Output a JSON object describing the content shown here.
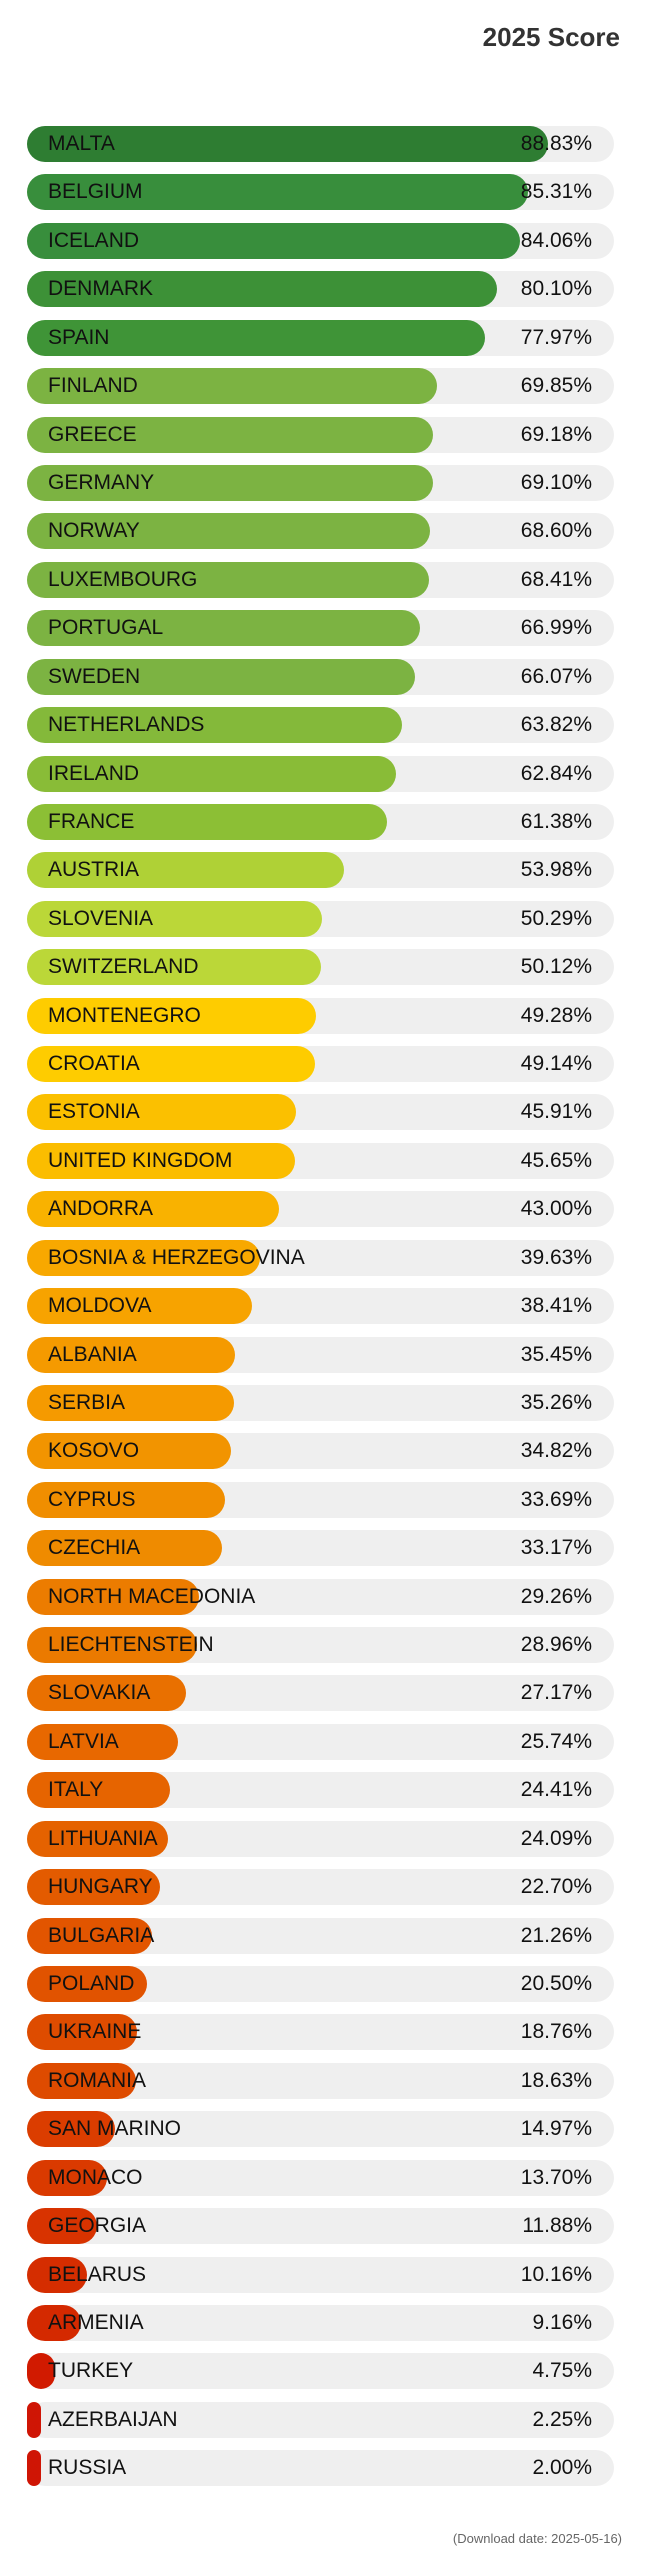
{
  "chart_data": {
    "type": "bar",
    "orientation": "horizontal",
    "title": "2025 Score",
    "xlim": [
      0,
      100
    ],
    "unit": "%",
    "categories": [
      "MALTA",
      "BELGIUM",
      "ICELAND",
      "DENMARK",
      "SPAIN",
      "FINLAND",
      "GREECE",
      "GERMANY",
      "NORWAY",
      "LUXEMBOURG",
      "PORTUGAL",
      "SWEDEN",
      "NETHERLANDS",
      "IRELAND",
      "FRANCE",
      "AUSTRIA",
      "SLOVENIA",
      "SWITZERLAND",
      "MONTENEGRO",
      "CROATIA",
      "ESTONIA",
      "UNITED KINGDOM",
      "ANDORRA",
      "BOSNIA & HERZEGOVINA",
      "MOLDOVA",
      "ALBANIA",
      "SERBIA",
      "KOSOVO",
      "CYPRUS",
      "CZECHIA",
      "NORTH MACEDONIA",
      "LIECHTENSTEIN",
      "SLOVAKIA",
      "LATVIA",
      "ITALY",
      "LITHUANIA",
      "HUNGARY",
      "BULGARIA",
      "POLAND",
      "UKRAINE",
      "ROMANIA",
      "SAN MARINO",
      "MONACO",
      "GEORGIA",
      "BELARUS",
      "ARMENIA",
      "TURKEY",
      "AZERBAIJAN",
      "RUSSIA"
    ],
    "values": [
      88.83,
      85.31,
      84.06,
      80.1,
      77.97,
      69.85,
      69.18,
      69.1,
      68.6,
      68.41,
      66.99,
      66.07,
      63.82,
      62.84,
      61.38,
      53.98,
      50.29,
      50.12,
      49.28,
      49.14,
      45.91,
      45.65,
      43.0,
      39.63,
      38.41,
      35.45,
      35.26,
      34.82,
      33.69,
      33.17,
      29.26,
      28.96,
      27.17,
      25.74,
      24.41,
      24.09,
      22.7,
      21.26,
      20.5,
      18.76,
      18.63,
      14.97,
      13.7,
      11.88,
      10.16,
      9.16,
      4.75,
      2.25,
      2.0
    ],
    "value_labels": [
      "88.83%",
      "85.31%",
      "84.06%",
      "80.10%",
      "77.97%",
      "69.85%",
      "69.18%",
      "69.10%",
      "68.60%",
      "68.41%",
      "66.99%",
      "66.07%",
      "63.82%",
      "62.84%",
      "61.38%",
      "53.98%",
      "50.29%",
      "50.12%",
      "49.28%",
      "49.14%",
      "45.91%",
      "45.65%",
      "43.00%",
      "39.63%",
      "38.41%",
      "35.45%",
      "35.26%",
      "34.82%",
      "33.69%",
      "33.17%",
      "29.26%",
      "28.96%",
      "27.17%",
      "25.74%",
      "24.41%",
      "24.09%",
      "22.70%",
      "21.26%",
      "20.50%",
      "18.76%",
      "18.63%",
      "14.97%",
      "13.70%",
      "11.88%",
      "10.16%",
      "9.16%",
      "4.75%",
      "2.25%",
      "2.00%"
    ],
    "colors": [
      "#2e7d32",
      "#388e3c",
      "#388e3c",
      "#3d9137",
      "#3f9437",
      "#7cb342",
      "#7cb342",
      "#7cb342",
      "#7cb342",
      "#7cb342",
      "#7cb342",
      "#7cb342",
      "#84b93a",
      "#89bc37",
      "#8cbf35",
      "#afd136",
      "#bbd738",
      "#bbd738",
      "#fecc00",
      "#fecc00",
      "#fbc000",
      "#fbbd00",
      "#f9b200",
      "#f8a800",
      "#f7a300",
      "#f59a00",
      "#f59a00",
      "#f29400",
      "#f08e00",
      "#ef8b00",
      "#ec7c00",
      "#eb7a00",
      "#e97000",
      "#e86800",
      "#e66400",
      "#e56200",
      "#e35b00",
      "#e25500",
      "#e15300",
      "#de4c00",
      "#de4b00",
      "#db3d00",
      "#da3a00",
      "#d83300",
      "#d52d00",
      "#d42900",
      "#d11a00",
      "#cf1505",
      "#cf1505"
    ],
    "track_color": "#efefef",
    "grid": false,
    "legend": "none"
  },
  "footer": "(Download date: 2025-05-16)"
}
